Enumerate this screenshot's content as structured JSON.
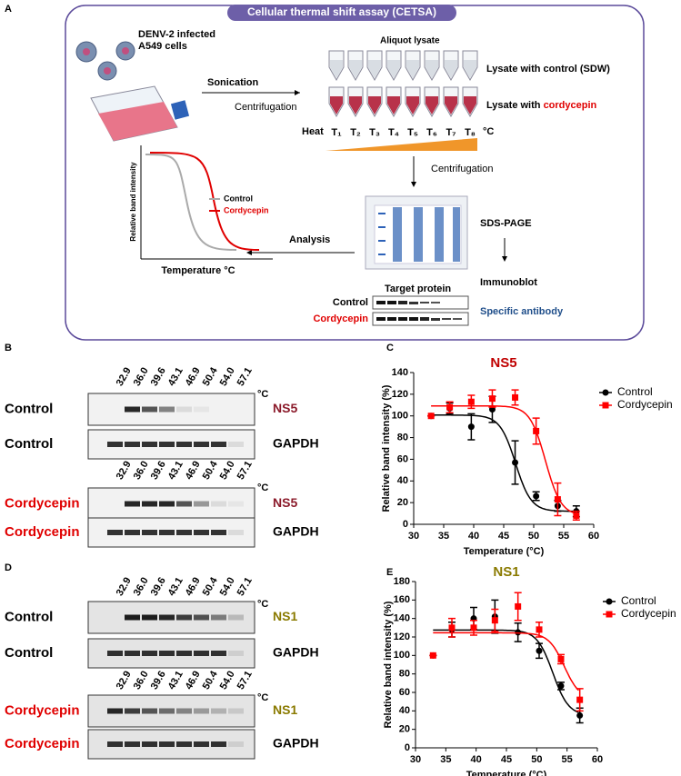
{
  "panelA": {
    "label": "A",
    "title": "Cellular thermal shift assay (CETSA)",
    "cells": [
      "DENV-2 infected",
      "A549 cells"
    ],
    "sonication": "Sonication",
    "centrifugation1": "Centrifugation",
    "aliquot": "Aliquot lysate",
    "lysate_control": "Lysate with control (SDW)",
    "lysate_cordycepin_prefix": "Lysate with ",
    "lysate_cordycepin_drug": "cordycepin",
    "heat": "Heat",
    "temps": [
      "T₁",
      "T₂",
      "T₃",
      "T₄",
      "T₅",
      "T₆",
      "T₇",
      "T₈"
    ],
    "unit": "°C",
    "centrifugation2": "Centrifugation",
    "sds": "SDS-PAGE",
    "immunoblot": "Immunoblot",
    "antibody": "Specific antibody",
    "target": "Target protein",
    "blot_control": "Control",
    "blot_cordycepin": "Cordycepin",
    "analysis": "Analysis",
    "mini_ylabel": "Relative band intensity",
    "mini_xlabel": "Temperature °C",
    "mini_legend": [
      "Control",
      "Cordycepin"
    ]
  },
  "blots": [
    {
      "label": "B",
      "temps": [
        "32.9",
        "36.0",
        "39.6",
        "43.1",
        "46.9",
        "50.4",
        "54.0",
        "57.1"
      ],
      "unit": "°C",
      "rows": [
        "Control",
        "Control",
        "Cordycepin",
        "Cordycepin"
      ],
      "proteins": [
        "NS5",
        "GAPDH",
        "NS5",
        "GAPDH"
      ]
    },
    {
      "label": "D",
      "temps": [
        "32.9",
        "36.0",
        "39.6",
        "43.1",
        "46.9",
        "50.4",
        "54.0",
        "57.1"
      ],
      "unit": "°C",
      "rows": [
        "Control",
        "Control",
        "Cordycepin",
        "Cordycepin"
      ],
      "proteins": [
        "NS1",
        "GAPDH",
        "NS1",
        "GAPDH"
      ]
    }
  ],
  "chart_data": [
    {
      "type": "scatter",
      "label": "C",
      "title": "NS5",
      "title_color": "#c00000",
      "xlabel": "Temperature (°C)",
      "ylabel": "Relative band intensity (%)",
      "xlim": [
        30,
        60
      ],
      "xticks": [
        30,
        35,
        40,
        45,
        50,
        55,
        60
      ],
      "ylim": [
        0,
        140
      ],
      "yticks": [
        0,
        20,
        40,
        60,
        80,
        100,
        120,
        140
      ],
      "x": [
        32.9,
        36.0,
        39.6,
        43.1,
        46.9,
        50.4,
        54.0,
        57.1
      ],
      "series": [
        {
          "name": "Control",
          "color": "#000000",
          "marker": "circle",
          "values": [
            100,
            107,
            90,
            106,
            57,
            26,
            17,
            12
          ],
          "errors": [
            0,
            5,
            12,
            12,
            20,
            4,
            5,
            5
          ]
        },
        {
          "name": "Cordycepin",
          "color": "#ff0000",
          "marker": "square",
          "values": [
            100,
            108,
            113,
            116,
            117,
            86,
            23,
            8
          ],
          "errors": [
            0,
            5,
            6,
            8,
            7,
            12,
            15,
            4
          ]
        }
      ]
    },
    {
      "type": "scatter",
      "label": "E",
      "title": "NS1",
      "title_color": "#8a7a00",
      "xlabel": "Temperature (°C)",
      "ylabel": "Relative band intensity (%)",
      "xlim": [
        30,
        60
      ],
      "xticks": [
        30,
        35,
        40,
        45,
        50,
        55,
        60
      ],
      "ylim": [
        0,
        180
      ],
      "yticks": [
        0,
        20,
        40,
        60,
        80,
        100,
        120,
        140,
        160,
        180
      ],
      "x": [
        32.9,
        36.0,
        39.6,
        43.1,
        46.9,
        50.4,
        54.0,
        57.1
      ],
      "series": [
        {
          "name": "Control",
          "color": "#000000",
          "marker": "circle",
          "values": [
            100,
            128,
            140,
            142,
            125,
            105,
            67,
            35
          ],
          "errors": [
            0,
            8,
            12,
            18,
            10,
            8,
            4,
            8
          ]
        },
        {
          "name": "Cordycepin",
          "color": "#ff0000",
          "marker": "square",
          "values": [
            100,
            130,
            130,
            138,
            153,
            128,
            96,
            52
          ],
          "errors": [
            0,
            10,
            8,
            12,
            15,
            8,
            5,
            12
          ]
        }
      ]
    }
  ]
}
